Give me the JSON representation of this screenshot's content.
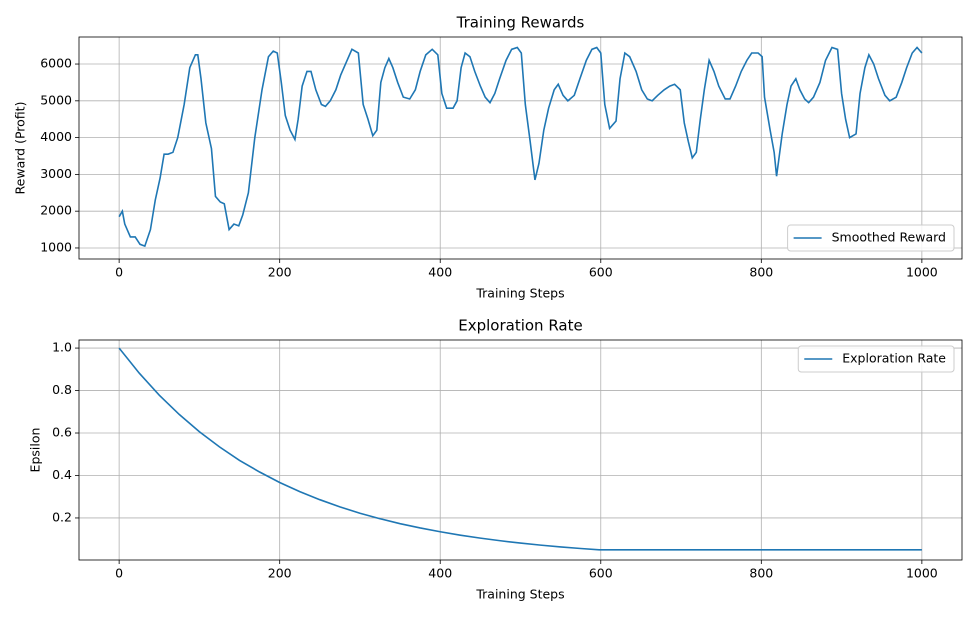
{
  "chart_data": [
    {
      "type": "line",
      "title": "Training Rewards",
      "x_label": "Training Steps",
      "y_label": "Reward (Profit)",
      "xlim": [
        -50,
        1050
      ],
      "ylim": [
        700,
        6735
      ],
      "xticks": [
        0,
        200,
        400,
        600,
        800,
        1000
      ],
      "yticks": [
        1000,
        2000,
        3000,
        4000,
        5000,
        6000
      ],
      "grid": true,
      "legend": "lower right",
      "x": [
        0,
        4,
        7,
        14,
        20,
        26,
        32,
        39,
        45,
        51,
        56,
        61,
        67,
        73,
        81,
        88,
        95,
        98,
        102,
        108,
        115,
        120,
        126,
        131,
        137,
        143,
        149,
        154,
        161,
        169,
        178,
        186,
        192,
        197,
        202,
        207,
        213,
        219,
        223,
        228,
        234,
        239,
        245,
        252,
        257,
        263,
        270,
        276,
        284,
        290,
        298,
        304,
        310,
        316,
        321,
        326,
        331,
        336,
        341,
        347,
        354,
        362,
        369,
        375,
        382,
        390,
        397,
        402,
        408,
        416,
        421,
        426,
        431,
        437,
        443,
        450,
        456,
        462,
        468,
        474,
        482,
        489,
        496,
        501,
        506,
        512,
        518,
        523,
        529,
        535,
        542,
        547,
        553,
        559,
        567,
        574,
        582,
        589,
        595,
        600,
        605,
        611,
        619,
        624,
        630,
        636,
        644,
        651,
        658,
        664,
        671,
        679,
        686,
        692,
        699,
        704,
        709,
        714,
        719,
        724,
        729,
        735,
        741,
        747,
        755,
        761,
        768,
        775,
        782,
        788,
        796,
        801,
        804,
        811,
        816,
        819,
        826,
        832,
        837,
        843,
        848,
        854,
        859,
        865,
        873,
        880,
        888,
        895,
        900,
        905,
        910,
        918,
        923,
        929,
        934,
        940,
        946,
        954,
        960,
        968,
        975,
        981,
        988,
        994,
        1000
      ],
      "series": [
        {
          "name": "Smoothed Reward",
          "color": "#1f77b4",
          "values": [
            1850,
            2000,
            1650,
            1300,
            1300,
            1100,
            1050,
            1500,
            2300,
            2900,
            3550,
            3550,
            3600,
            4000,
            4900,
            5900,
            6250,
            6250,
            5600,
            4400,
            3700,
            2400,
            2250,
            2200,
            1500,
            1650,
            1600,
            1900,
            2500,
            4000,
            5300,
            6200,
            6350,
            6300,
            5500,
            4600,
            4200,
            3950,
            4500,
            5400,
            5800,
            5800,
            5300,
            4900,
            4850,
            5000,
            5300,
            5700,
            6100,
            6400,
            6300,
            4900,
            4500,
            4050,
            4200,
            5500,
            5900,
            6150,
            5900,
            5500,
            5100,
            5050,
            5300,
            5800,
            6250,
            6400,
            6250,
            5200,
            4800,
            4800,
            5000,
            5900,
            6300,
            6200,
            5800,
            5400,
            5100,
            4950,
            5200,
            5600,
            6100,
            6400,
            6450,
            6300,
            4900,
            3900,
            2850,
            3300,
            4200,
            4800,
            5300,
            5450,
            5150,
            5000,
            5150,
            5600,
            6100,
            6400,
            6450,
            6300,
            4900,
            4250,
            4450,
            5600,
            6300,
            6200,
            5800,
            5300,
            5050,
            5000,
            5150,
            5300,
            5400,
            5450,
            5300,
            4400,
            3900,
            3450,
            3600,
            4500,
            5300,
            6100,
            5800,
            5400,
            5050,
            5050,
            5400,
            5800,
            6100,
            6300,
            6300,
            6200,
            5100,
            4200,
            3600,
            2950,
            4100,
            4900,
            5400,
            5600,
            5300,
            5050,
            4950,
            5100,
            5500,
            6100,
            6450,
            6400,
            5200,
            4500,
            4000,
            4100,
            5200,
            5900,
            6250,
            6000,
            5600,
            5150,
            5000,
            5100,
            5500,
            5900,
            6300,
            6450,
            6300
          ]
        }
      ]
    },
    {
      "type": "line",
      "title": "Exploration Rate",
      "x_label": "Training Steps",
      "y_label": "Epsilon",
      "xlim": [
        -50,
        1050
      ],
      "ylim": [
        0.002,
        1.038
      ],
      "xticks": [
        0,
        200,
        400,
        600,
        800,
        1000
      ],
      "yticks": [
        0.2,
        0.4,
        0.6,
        0.8,
        {
          "value": 1,
          "label": "1.0"
        }
      ],
      "grid": true,
      "legend": "upper right",
      "x": [
        0,
        25,
        50,
        75,
        100,
        125,
        150,
        175,
        200,
        225,
        250,
        275,
        300,
        325,
        350,
        375,
        400,
        425,
        450,
        475,
        500,
        525,
        550,
        575,
        598,
        700,
        800,
        900,
        1000
      ],
      "series": [
        {
          "name": "Exploration Rate",
          "color": "#1f77b4",
          "values": [
            1,
            0.8822,
            0.778,
            0.6871,
            0.606,
            0.5348,
            0.471,
            0.4163,
            0.367,
            0.3241,
            0.286,
            0.2523,
            0.222,
            0.1964,
            0.173,
            0.1529,
            0.135,
            0.119,
            0.105,
            0.0926,
            0.0816,
            0.0721,
            0.0635,
            0.0561,
            0.05,
            0.05,
            0.05,
            0.05,
            0.05
          ]
        }
      ]
    }
  ]
}
